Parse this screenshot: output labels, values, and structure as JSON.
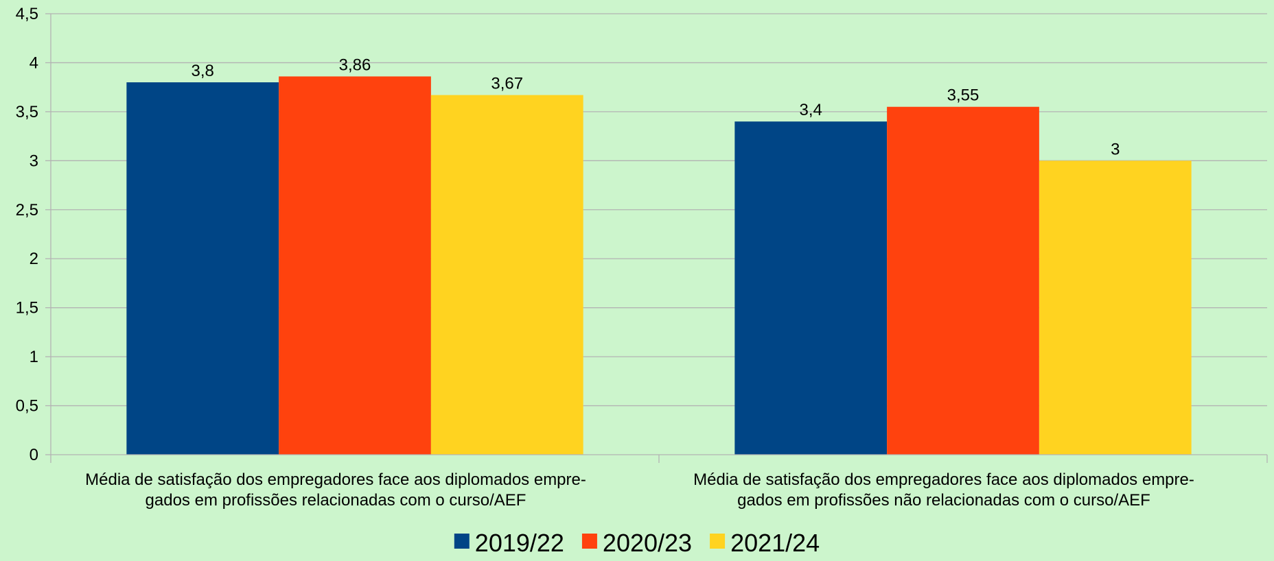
{
  "chart_data": {
    "type": "bar",
    "title": "",
    "xlabel": "",
    "ylabel": "",
    "ylim": [
      0,
      4.5
    ],
    "yticks": [
      "0",
      "0,5",
      "1",
      "1,5",
      "2",
      "2,5",
      "3",
      "3,5",
      "4",
      "4,5"
    ],
    "ytick_values": [
      0,
      0.5,
      1,
      1.5,
      2,
      2.5,
      3,
      3.5,
      4,
      4.5
    ],
    "grid": true,
    "legend_position": "bottom",
    "categories": [
      [
        "Média de satisfação dos empregadores face aos diplomados empre-",
        "gados em profissões relacionadas com o curso/AEF"
      ],
      [
        "Média de satisfação dos empregadores face aos diplomados empre-",
        "gados em profissões não relacionadas com o curso/AEF"
      ]
    ],
    "series": [
      {
        "name": "2019/22",
        "color": "#004586",
        "values": [
          3.8,
          3.4
        ],
        "labels": [
          "3,8",
          "3,4"
        ]
      },
      {
        "name": "2020/23",
        "color": "#ff420e",
        "values": [
          3.86,
          3.55
        ],
        "labels": [
          "3,86",
          "3,55"
        ]
      },
      {
        "name": "2021/24",
        "color": "#ffd320",
        "values": [
          3.67,
          3.0
        ],
        "labels": [
          "3,67",
          "3"
        ]
      }
    ]
  }
}
